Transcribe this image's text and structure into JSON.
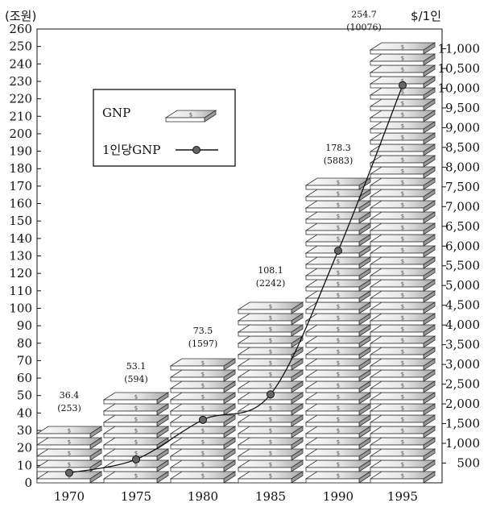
{
  "chart_data": {
    "type": "bar",
    "left_unit": "(조원)",
    "right_unit": "$/1인",
    "categories": [
      "1970",
      "1975",
      "1980",
      "1985",
      "1990",
      "1995"
    ],
    "series": [
      {
        "name": "GNP",
        "values": [
          36.4,
          53.1,
          73.5,
          108.1,
          178.3,
          254.7
        ]
      },
      {
        "name": "1인당GNP",
        "values": [
          253,
          594,
          1597,
          2242,
          5883,
          10076
        ]
      }
    ],
    "value_labels": [
      "36.4",
      "53.1",
      "73.5",
      "108.1",
      "178.3",
      "254.7"
    ],
    "per_capita_labels": [
      "(253)",
      "(594)",
      "(1597)",
      "(2242)",
      "(5883)",
      "(10076)"
    ],
    "y_left_ticks": [
      "0",
      "10",
      "20",
      "30",
      "40",
      "50",
      "60",
      "70",
      "80",
      "90",
      "100",
      "110",
      "120",
      "130",
      "140",
      "150",
      "160",
      "170",
      "180",
      "190",
      "200",
      "210",
      "220",
      "230",
      "240",
      "250",
      "260"
    ],
    "y_right_ticks": [
      "500",
      "1,000",
      "1,500",
      "2,000",
      "2,500",
      "3,000",
      "3,500",
      "4,000",
      "4,500",
      "5,000",
      "5,500",
      "6,000",
      "6,500",
      "7,000",
      "7,500",
      "8,000",
      "8,500",
      "9,000",
      "9,500",
      "10,000",
      "10,500",
      "11,000"
    ],
    "ylim_left": [
      0,
      260
    ],
    "ylim_right": [
      0,
      11500
    ],
    "legend": {
      "placement": "top-left",
      "gnp_label": "GNP",
      "percap_label": "1인당GNP"
    },
    "colors": {
      "bar_top": "#f4f4f4",
      "bar_front": "#ffffff",
      "bar_side": "#9a9a9a",
      "marker": "#666666",
      "line": "#111111"
    }
  }
}
